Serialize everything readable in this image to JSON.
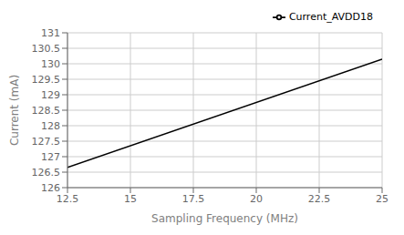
{
  "chart_data": {
    "type": "line",
    "xlabel": "Sampling Frequency (MHz)",
    "ylabel": "Current (mA)",
    "x": [
      12.5,
      25.0
    ],
    "series": [
      {
        "name": "Current_AVDD18",
        "color": "#000000",
        "values": [
          126.65,
          130.15
        ]
      }
    ],
    "xlim": [
      12.5,
      25
    ],
    "ylim": [
      126,
      131
    ],
    "xticks": [
      12.5,
      15,
      17.5,
      20,
      22.5,
      25
    ],
    "yticks": [
      126,
      126.5,
      127,
      127.5,
      128,
      128.5,
      129,
      129.5,
      130,
      130.5,
      131
    ],
    "grid": true,
    "legend": "upper right"
  }
}
